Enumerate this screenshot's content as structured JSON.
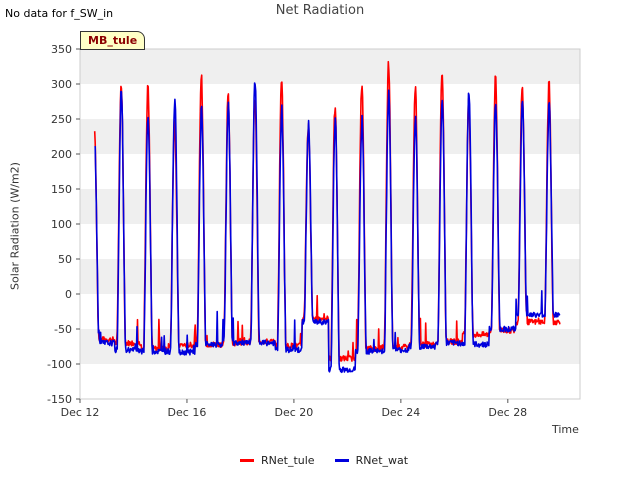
{
  "header": {
    "note": "No data for f_SW_in",
    "site_label": "MB_tule"
  },
  "colors": {
    "RNet_tule": "#ff0000",
    "RNet_wat": "#0000dd",
    "band": "#efefef"
  },
  "chart_data": {
    "type": "line",
    "title": "Net Radiation",
    "xlabel": "Time",
    "ylabel": "Solar Radiation (W/m2)",
    "ylim": [
      -150,
      350
    ],
    "xlim_days": [
      12,
      30.7
    ],
    "yticks": [
      -150,
      -100,
      -50,
      0,
      50,
      100,
      150,
      200,
      250,
      300,
      350
    ],
    "xticks": [
      {
        "day": 12,
        "label": "Dec 12"
      },
      {
        "day": 16,
        "label": "Dec 16"
      },
      {
        "day": 20,
        "label": "Dec 20"
      },
      {
        "day": 24,
        "label": "Dec 24"
      },
      {
        "day": 28,
        "label": "Dec 28"
      }
    ],
    "grid": "alternating horizontal bands",
    "legend_position": "bottom-center",
    "series": [
      {
        "name": "RNet_tule",
        "day_peaks": [
          235,
          302,
          292,
          245,
          308,
          282,
          278,
          305,
          240,
          270,
          298,
          330,
          295,
          320,
          275,
          305,
          298
        ],
        "night_lows": [
          -65,
          -70,
          -78,
          -73,
          -72,
          -70,
          -68,
          -74,
          -35,
          -92,
          -78,
          -76,
          -72,
          -68,
          -58,
          -52,
          -40
        ]
      },
      {
        "name": "RNet_wat",
        "day_peaks": [
          218,
          292,
          256,
          280,
          262,
          266,
          308,
          263,
          240,
          250,
          250,
          285,
          252,
          280,
          288,
          275,
          270
        ],
        "night_lows": [
          -70,
          -80,
          -82,
          -83,
          -72,
          -70,
          -70,
          -80,
          -40,
          -108,
          -82,
          -80,
          -75,
          -70,
          -72,
          -50,
          -30
        ]
      }
    ]
  }
}
